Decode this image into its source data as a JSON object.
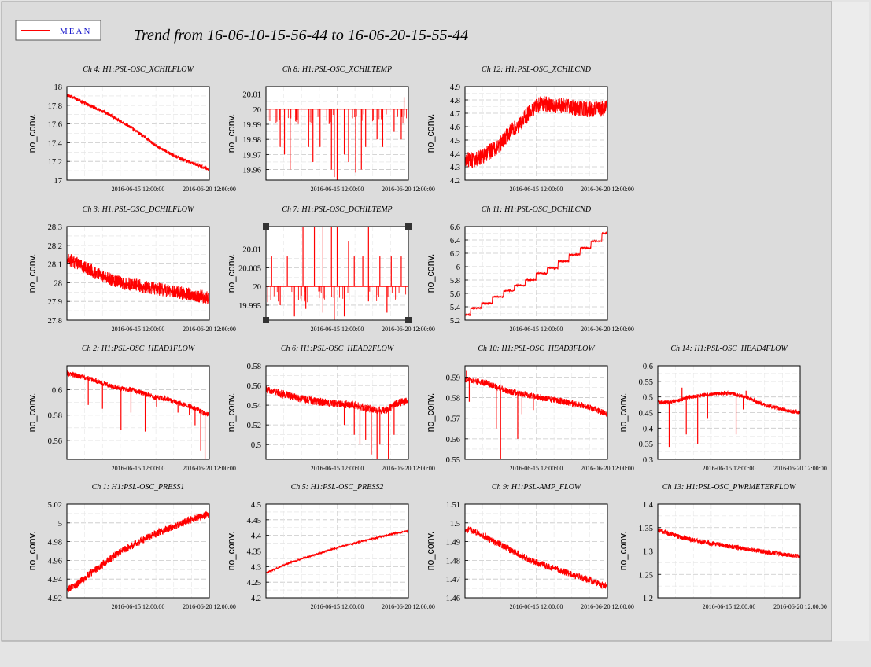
{
  "header": {
    "legend_label": "MEAN",
    "title": "Trend from 16-06-10-15-56-44 to 16-06-20-15-55-44"
  },
  "colors": {
    "series": "#ff0000",
    "legend_text": "#1a1acc",
    "grid": "#c8c8c8",
    "frame": "#000000"
  },
  "chart_data": [
    {
      "id": "ch4",
      "type": "line",
      "title": "Ch 4: H1:PSL-OSC_XCHILFLOW",
      "ylabel": "no_conv.",
      "xticks": [
        "2016-06-15 12:00:00",
        "2016-06-20 12:00:00"
      ],
      "ylim": [
        17,
        18
      ],
      "yticks": [
        "17",
        "17.2",
        "17.4",
        "17.6",
        "17.8",
        "18"
      ],
      "series": [
        {
          "values": [
            17.91,
            17.86,
            17.8,
            17.75,
            17.69,
            17.62,
            17.55,
            17.47,
            17.38,
            17.31,
            17.25,
            17.2,
            17.16,
            17.11
          ]
        }
      ]
    },
    {
      "id": "ch8",
      "type": "line",
      "title": "Ch 8: H1:PSL-OSC_XCHILTEMP",
      "ylabel": "no_conv.",
      "xticks": [
        "2016-06-15 12:00:00",
        "2016-06-20 12:00:00"
      ],
      "ylim": [
        19.953,
        20.015
      ],
      "yticks": [
        "19.96",
        "19.97",
        "19.98",
        "19.99",
        "20",
        "20.01"
      ],
      "series": [
        {
          "values": [
            20.0,
            20.0,
            20.0,
            20.0,
            20.0,
            20.0,
            20.0,
            20.0,
            20.0,
            20.0,
            20.0,
            20.0,
            20.0,
            20.0
          ]
        }
      ]
    },
    {
      "id": "ch12",
      "type": "line",
      "title": "Ch 12: H1:PSL-OSC_XCHILCND",
      "ylabel": "no_conv.",
      "xticks": [
        "2016-06-15 12:00:00",
        "2016-06-20 12:00:00"
      ],
      "ylim": [
        4.2,
        4.9
      ],
      "yticks": [
        "4.2",
        "4.3",
        "4.4",
        "4.5",
        "4.6",
        "4.7",
        "4.8",
        "4.9"
      ],
      "series": [
        {
          "values": [
            4.35,
            4.35,
            4.4,
            4.45,
            4.55,
            4.62,
            4.72,
            4.78,
            4.76,
            4.76,
            4.74,
            4.73,
            4.73,
            4.74
          ]
        }
      ]
    },
    {
      "id": "ch3",
      "type": "line",
      "title": "Ch 3: H1:PSL-OSC_DCHILFLOW",
      "ylabel": "no_conv.",
      "xticks": [
        "2016-06-15 12:00:00",
        "2016-06-20 12:00:00"
      ],
      "ylim": [
        27.8,
        28.3
      ],
      "yticks": [
        "27.8",
        "27.9",
        "28",
        "28.1",
        "28.2",
        "28.3"
      ],
      "series": [
        {
          "values": [
            28.13,
            28.1,
            28.07,
            28.04,
            28.02,
            28.0,
            27.99,
            27.98,
            27.97,
            27.96,
            27.95,
            27.94,
            27.93,
            27.92
          ]
        }
      ]
    },
    {
      "id": "ch7",
      "type": "line",
      "title": "Ch 7: H1:PSL-OSC_DCHILTEMP",
      "ylabel": "no_conv.",
      "xticks": [
        "2016-06-15 12:00:00",
        "2016-06-20 12:00:00"
      ],
      "ylim": [
        19.991,
        20.016
      ],
      "yticks": [
        "19.995",
        "20",
        "20.005",
        "20.01"
      ],
      "series": [
        {
          "values": [
            20.0,
            20.0,
            20.0,
            20.0,
            20.0,
            20.0,
            20.0,
            20.0,
            20.0,
            20.0,
            20.0,
            20.0,
            20.0,
            20.0
          ]
        }
      ]
    },
    {
      "id": "ch11",
      "type": "line",
      "title": "Ch 11: H1:PSL-OSC_DCHILCND",
      "ylabel": "no_conv.",
      "xticks": [
        "2016-06-15 12:00:00",
        "2016-06-20 12:00:00"
      ],
      "ylim": [
        5.2,
        6.6
      ],
      "yticks": [
        "5.2",
        "5.4",
        "5.6",
        "5.8",
        "6",
        "6.2",
        "6.4",
        "6.6"
      ],
      "series": [
        {
          "values": [
            5.28,
            5.38,
            5.45,
            5.55,
            5.64,
            5.72,
            5.8,
            5.9,
            5.98,
            6.08,
            6.18,
            6.28,
            6.38,
            6.5
          ]
        }
      ]
    },
    {
      "id": "ch2",
      "type": "line",
      "title": "Ch 2: H1:PSL-OSC_HEAD1FLOW",
      "ylabel": "no_conv.",
      "xticks": [
        "2016-06-15 12:00:00",
        "2016-06-20 12:00:00"
      ],
      "ylim": [
        0.545,
        0.619
      ],
      "yticks": [
        "0.56",
        "0.58",
        "0.6"
      ],
      "series": [
        {
          "values": [
            0.613,
            0.611,
            0.609,
            0.606,
            0.603,
            0.601,
            0.6,
            0.597,
            0.594,
            0.593,
            0.59,
            0.588,
            0.584,
            0.58
          ]
        }
      ]
    },
    {
      "id": "ch6",
      "type": "line",
      "title": "Ch 6: H1:PSL-OSC_HEAD2FLOW",
      "ylabel": "no_conv.",
      "xticks": [
        "2016-06-15 12:00:00",
        "2016-06-20 12:00:00"
      ],
      "ylim": [
        0.485,
        0.58
      ],
      "yticks": [
        "0.5",
        "0.52",
        "0.54",
        "0.56",
        "0.58"
      ],
      "series": [
        {
          "values": [
            0.556,
            0.553,
            0.55,
            0.547,
            0.545,
            0.543,
            0.542,
            0.541,
            0.54,
            0.538,
            0.535,
            0.535,
            0.542,
            0.545
          ]
        }
      ]
    },
    {
      "id": "ch10",
      "type": "line",
      "title": "Ch 10: H1:PSL-OSC_HEAD3FLOW",
      "ylabel": "no_conv.",
      "xticks": [
        "2016-06-15 12:00:00",
        "2016-06-20 12:00:00"
      ],
      "ylim": [
        0.55,
        0.5955
      ],
      "yticks": [
        "0.55",
        "0.56",
        "0.57",
        "0.58",
        "0.59"
      ],
      "series": [
        {
          "values": [
            0.589,
            0.588,
            0.587,
            0.585,
            0.583,
            0.582,
            0.581,
            0.58,
            0.579,
            0.578,
            0.577,
            0.576,
            0.574,
            0.572
          ]
        }
      ]
    },
    {
      "id": "ch14",
      "type": "line",
      "title": "Ch 14: H1:PSL-OSC_HEAD4FLOW",
      "ylabel": "no_conv.",
      "xticks": [
        "2016-06-15 12:00:00",
        "2016-06-20 12:00:00"
      ],
      "ylim": [
        0.3,
        0.6
      ],
      "yticks": [
        "0.3",
        "0.35",
        "0.4",
        "0.45",
        "0.5",
        "0.55",
        "0.6"
      ],
      "series": [
        {
          "values": [
            0.485,
            0.483,
            0.49,
            0.5,
            0.505,
            0.51,
            0.512,
            0.51,
            0.5,
            0.485,
            0.472,
            0.465,
            0.455,
            0.45
          ]
        }
      ]
    },
    {
      "id": "ch1",
      "type": "line",
      "title": "Ch 1: H1:PSL-OSC_PRESS1",
      "ylabel": "no_conv.",
      "xticks": [
        "2016-06-15 12:00:00",
        "2016-06-20 12:00:00"
      ],
      "ylim": [
        4.92,
        5.02
      ],
      "yticks": [
        "4.92",
        "4.94",
        "4.96",
        "4.98",
        "5",
        "5.02"
      ],
      "series": [
        {
          "values": [
            4.928,
            4.935,
            4.945,
            4.953,
            4.962,
            4.97,
            4.976,
            4.982,
            4.988,
            4.993,
            4.997,
            5.002,
            5.006,
            5.009
          ]
        }
      ]
    },
    {
      "id": "ch5",
      "type": "line",
      "title": "Ch 5: H1:PSL-OSC_PRESS2",
      "ylabel": "no_conv.",
      "xticks": [
        "2016-06-15 12:00:00",
        "2016-06-20 12:00:00"
      ],
      "ylim": [
        4.2,
        4.5
      ],
      "yticks": [
        "4.2",
        "4.25",
        "4.3",
        "4.35",
        "4.4",
        "4.45",
        "4.5"
      ],
      "series": [
        {
          "values": [
            4.28,
            4.295,
            4.31,
            4.322,
            4.333,
            4.344,
            4.355,
            4.365,
            4.374,
            4.383,
            4.392,
            4.4,
            4.408,
            4.415
          ]
        }
      ]
    },
    {
      "id": "ch9",
      "type": "line",
      "title": "Ch 9: H1:PSL-AMP_FLOW",
      "ylabel": "no_conv.",
      "xticks": [
        "2016-06-15 12:00:00",
        "2016-06-20 12:00:00"
      ],
      "ylim": [
        1.46,
        1.51
      ],
      "yticks": [
        "1.46",
        "1.47",
        "1.48",
        "1.49",
        "1.5",
        "1.51"
      ],
      "series": [
        {
          "values": [
            1.497,
            1.495,
            1.492,
            1.489,
            1.486,
            1.483,
            1.48,
            1.478,
            1.476,
            1.474,
            1.472,
            1.47,
            1.468,
            1.466
          ]
        }
      ]
    },
    {
      "id": "ch13",
      "type": "line",
      "title": "Ch 13: H1:PSL-OSC_PWRMETERFLOW",
      "ylabel": "no_conv.",
      "xticks": [
        "2016-06-15 12:00:00",
        "2016-06-20 12:00:00"
      ],
      "ylim": [
        1.2,
        1.4
      ],
      "yticks": [
        "1.2",
        "1.25",
        "1.3",
        "1.35",
        "1.4"
      ],
      "series": [
        {
          "values": [
            1.345,
            1.338,
            1.33,
            1.325,
            1.32,
            1.316,
            1.312,
            1.308,
            1.305,
            1.301,
            1.297,
            1.294,
            1.291,
            1.288
          ]
        }
      ]
    }
  ]
}
